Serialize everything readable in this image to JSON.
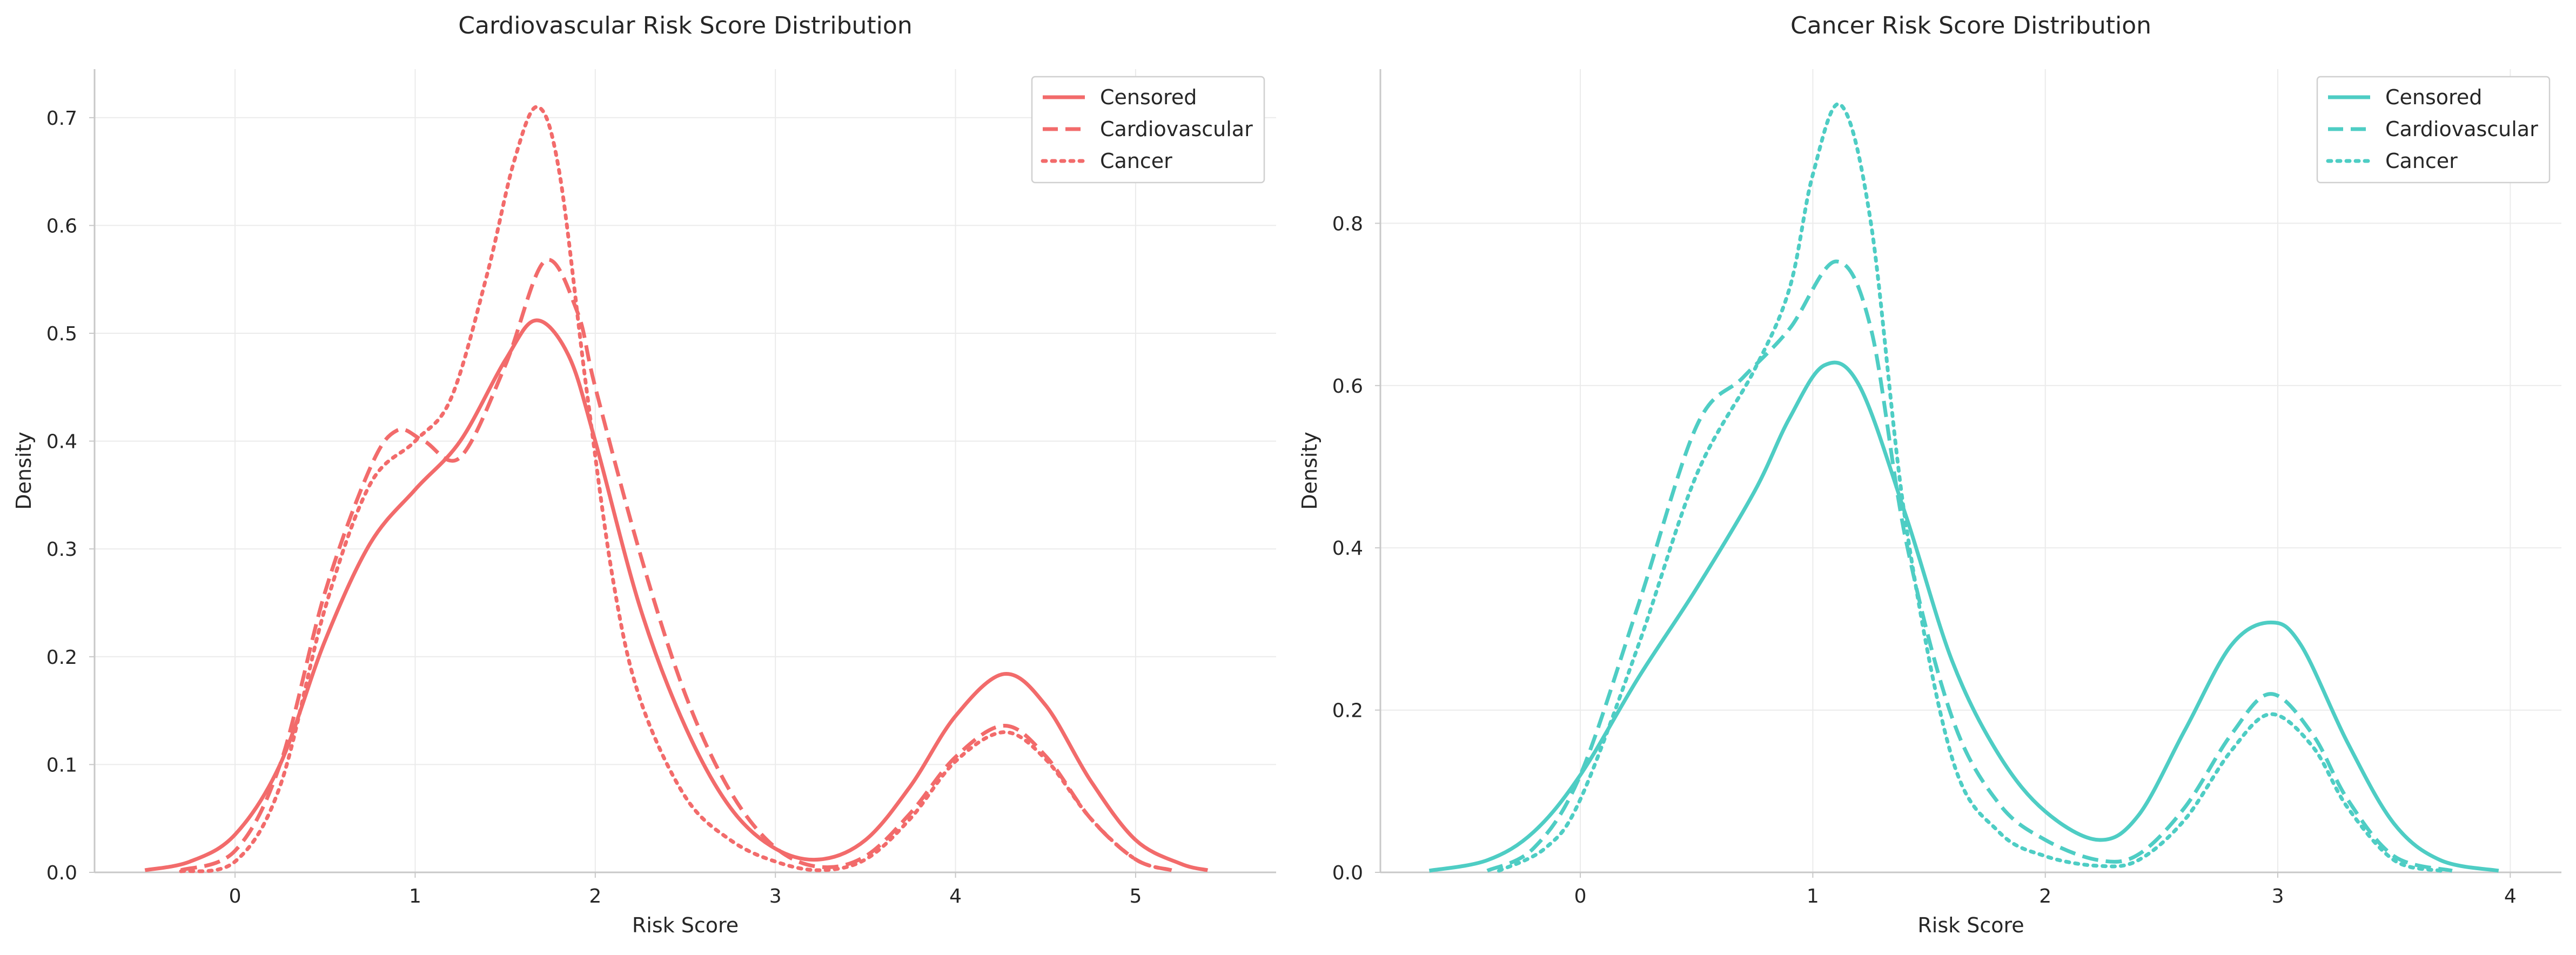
{
  "chart_data": [
    {
      "type": "line",
      "title": "Cardiovascular Risk Score Distribution",
      "xlabel": "Risk Score",
      "ylabel": "Density",
      "xlim": [
        -0.78,
        5.78
      ],
      "ylim": [
        0,
        0.745
      ],
      "xticks": [
        0,
        1,
        2,
        3,
        4,
        5
      ],
      "xtick_labels": [
        "0",
        "1",
        "2",
        "3",
        "4",
        "5"
      ],
      "yticks": [
        0,
        0.1,
        0.2,
        0.3,
        0.4,
        0.5,
        0.6,
        0.7
      ],
      "ytick_labels": [
        "0.0",
        "0.1",
        "0.2",
        "0.3",
        "0.4",
        "0.5",
        "0.6",
        "0.7"
      ],
      "grid": true,
      "legend_position": "top-right",
      "color": "#f26b6b",
      "series": [
        {
          "name": "Censored",
          "style": "solid",
          "x": [
            -0.5,
            -0.25,
            0,
            0.25,
            0.5,
            0.75,
            1.0,
            1.25,
            1.5,
            1.67,
            1.85,
            2.0,
            2.25,
            2.5,
            2.75,
            3.0,
            3.25,
            3.5,
            3.75,
            4.0,
            4.27,
            4.5,
            4.75,
            5.0,
            5.25,
            5.4
          ],
          "y": [
            0.002,
            0.01,
            0.035,
            0.1,
            0.215,
            0.305,
            0.355,
            0.4,
            0.475,
            0.512,
            0.48,
            0.4,
            0.245,
            0.135,
            0.06,
            0.022,
            0.012,
            0.03,
            0.08,
            0.145,
            0.184,
            0.155,
            0.085,
            0.03,
            0.008,
            0.002
          ]
        },
        {
          "name": "Cardiovascular",
          "style": "dashed",
          "x": [
            -0.3,
            0,
            0.25,
            0.5,
            0.75,
            0.9,
            1.05,
            1.25,
            1.5,
            1.72,
            1.9,
            2.0,
            2.25,
            2.5,
            2.75,
            3.0,
            3.25,
            3.5,
            3.75,
            4.0,
            4.27,
            4.5,
            4.75,
            5.0,
            5.2
          ],
          "y": [
            0.002,
            0.02,
            0.1,
            0.26,
            0.375,
            0.41,
            0.4,
            0.385,
            0.47,
            0.567,
            0.52,
            0.45,
            0.295,
            0.165,
            0.075,
            0.023,
            0.005,
            0.015,
            0.055,
            0.107,
            0.136,
            0.108,
            0.05,
            0.012,
            0.002
          ]
        },
        {
          "name": "Cancer",
          "style": "dotted",
          "x": [
            -0.3,
            0,
            0.25,
            0.5,
            0.75,
            1.0,
            1.2,
            1.4,
            1.55,
            1.68,
            1.8,
            1.95,
            2.1,
            2.25,
            2.5,
            2.75,
            3.0,
            3.25,
            3.5,
            3.75,
            4.0,
            4.27,
            4.5,
            4.75,
            5.0,
            5.2
          ],
          "y": [
            0.001,
            0.01,
            0.08,
            0.245,
            0.36,
            0.4,
            0.44,
            0.555,
            0.66,
            0.71,
            0.65,
            0.45,
            0.27,
            0.16,
            0.07,
            0.03,
            0.01,
            0.002,
            0.012,
            0.05,
            0.103,
            0.13,
            0.105,
            0.05,
            0.012,
            0.002
          ]
        }
      ]
    },
    {
      "type": "line",
      "title": "Cancer Risk Score Distribution",
      "xlabel": "Risk Score",
      "ylabel": "Density",
      "xlim": [
        -0.86,
        4.22
      ],
      "ylim": [
        0,
        0.99
      ],
      "xticks": [
        0,
        1,
        2,
        3,
        4
      ],
      "xtick_labels": [
        "0",
        "1",
        "2",
        "3",
        "4"
      ],
      "yticks": [
        0,
        0.2,
        0.4,
        0.6,
        0.8
      ],
      "ytick_labels": [
        "0.0",
        "0.2",
        "0.4",
        "0.6",
        "0.8"
      ],
      "grid": true,
      "legend_position": "top-right",
      "color": "#4ecdc4",
      "series": [
        {
          "name": "Censored",
          "style": "solid",
          "x": [
            -0.65,
            -0.4,
            -0.2,
            0,
            0.25,
            0.5,
            0.75,
            0.9,
            1.05,
            1.2,
            1.4,
            1.6,
            1.8,
            2.0,
            2.23,
            2.4,
            2.6,
            2.8,
            2.97,
            3.1,
            3.3,
            3.5,
            3.7,
            3.95
          ],
          "y": [
            0.002,
            0.015,
            0.05,
            0.12,
            0.24,
            0.35,
            0.47,
            0.56,
            0.625,
            0.6,
            0.44,
            0.26,
            0.145,
            0.075,
            0.04,
            0.07,
            0.175,
            0.28,
            0.308,
            0.28,
            0.16,
            0.06,
            0.015,
            0.002
          ]
        },
        {
          "name": "Cardiovascular",
          "style": "dashed",
          "x": [
            -0.4,
            -0.2,
            0,
            0.25,
            0.5,
            0.7,
            0.9,
            1.1,
            1.25,
            1.4,
            1.6,
            1.8,
            2.0,
            2.23,
            2.4,
            2.6,
            2.8,
            2.97,
            3.15,
            3.3,
            3.5,
            3.75
          ],
          "y": [
            0.002,
            0.03,
            0.12,
            0.33,
            0.55,
            0.61,
            0.67,
            0.753,
            0.67,
            0.41,
            0.19,
            0.085,
            0.04,
            0.015,
            0.022,
            0.08,
            0.17,
            0.22,
            0.17,
            0.09,
            0.02,
            0.002
          ]
        },
        {
          "name": "Cancer",
          "style": "dotted",
          "x": [
            -0.35,
            -0.15,
            0,
            0.25,
            0.5,
            0.75,
            0.9,
            1.0,
            1.12,
            1.25,
            1.4,
            1.6,
            1.8,
            2.0,
            2.23,
            2.4,
            2.6,
            2.8,
            2.97,
            3.15,
            3.3,
            3.5,
            3.7
          ],
          "y": [
            0.002,
            0.03,
            0.09,
            0.28,
            0.49,
            0.62,
            0.72,
            0.86,
            0.946,
            0.8,
            0.43,
            0.14,
            0.05,
            0.02,
            0.008,
            0.015,
            0.065,
            0.15,
            0.195,
            0.155,
            0.08,
            0.015,
            0.002
          ]
        }
      ]
    }
  ]
}
